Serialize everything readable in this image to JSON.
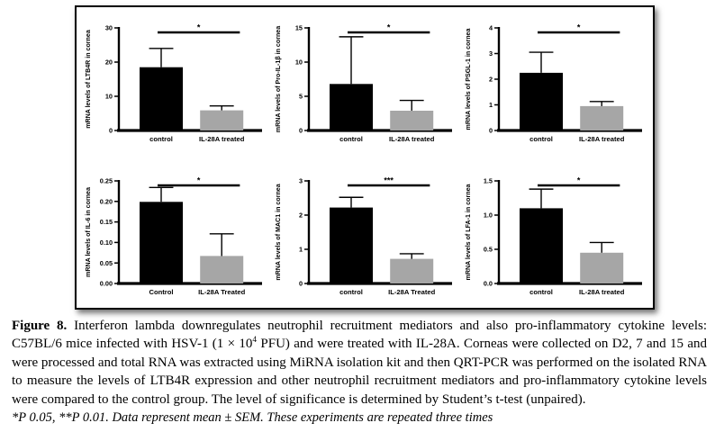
{
  "figure": {
    "caption": {
      "label": "Figure 8.",
      "text_before_sup": " Interferon lambda downregulates neutrophil recruitment mediators and also pro-inflammatory cytokine levels: C57BL/6 mice infected with HSV-1 (1 × 10",
      "superscript": "4",
      "text_after_sup": " PFU) and were treated with IL-28A. Corneas were collected on D2, 7 and 15 and were processed and total RNA was extracted using MiRNA isolation kit and then QRT-PCR was performed on the isolated RNA to measure the levels of LTB4R expression and other neutrophil recruitment mediators and pro-inflammatory cytokine levels were compared to the control group. The level of significance is determined by Student’s t-test (unpaired)."
    },
    "footnote": "*P 0.05, **P 0.01. Data represent mean ± SEM. These experiments are repeated three times"
  },
  "chart_data": [
    {
      "type": "bar",
      "id": "ltb4r",
      "ylabel": "mRNA levels of LTB4R in cornea",
      "categories": [
        "control",
        "IL-28A treated"
      ],
      "values": [
        18.5,
        5.9
      ],
      "errors": [
        5.5,
        1.3
      ],
      "ylim": [
        0,
        30
      ],
      "ytick_values": [
        0,
        10,
        20,
        30
      ],
      "yticks": [
        "0",
        "10",
        "20",
        "30"
      ],
      "significance": "*",
      "bar_colors": [
        "#000000",
        "#a6a6a6"
      ],
      "grid": false,
      "legend": "none"
    },
    {
      "type": "bar",
      "id": "pro-il-1b",
      "ylabel": "mRNA levels of Pro-IL-1β in cornea",
      "categories": [
        "control",
        "IL-28A treated"
      ],
      "values": [
        6.8,
        2.9
      ],
      "errors": [
        6.9,
        1.5
      ],
      "ylim": [
        0,
        15
      ],
      "ytick_values": [
        0,
        5,
        10,
        15
      ],
      "yticks": [
        "0",
        "5",
        "10",
        "15"
      ],
      "significance": "*",
      "bar_colors": [
        "#000000",
        "#a6a6a6"
      ],
      "grid": false,
      "legend": "none"
    },
    {
      "type": "bar",
      "id": "psgl-1",
      "ylabel": "mRNA levels of PSGL-1 in cornea",
      "categories": [
        "control",
        "IL-28A treated"
      ],
      "values": [
        2.25,
        0.95
      ],
      "errors": [
        0.8,
        0.18
      ],
      "ylim": [
        0,
        4
      ],
      "ytick_values": [
        0,
        1,
        2,
        3,
        4
      ],
      "yticks": [
        "0",
        "1",
        "2",
        "3",
        "4"
      ],
      "significance": "*",
      "bar_colors": [
        "#000000",
        "#a6a6a6"
      ],
      "grid": false,
      "legend": "none"
    },
    {
      "type": "bar",
      "id": "il-6",
      "ylabel": "mRNA levels of IL-6 in cornea",
      "categories": [
        "Control",
        "IL-28A Treated"
      ],
      "values": [
        0.199,
        0.067
      ],
      "errors": [
        0.035,
        0.054
      ],
      "ylim": [
        0,
        0.25
      ],
      "ytick_values": [
        0,
        0.05,
        0.1,
        0.15,
        0.2,
        0.25
      ],
      "yticks": [
        "0.00",
        "0.05",
        "0.10",
        "0.15",
        "0.20",
        "0.25"
      ],
      "significance": "*",
      "bar_colors": [
        "#000000",
        "#a6a6a6"
      ],
      "grid": false,
      "legend": "none"
    },
    {
      "type": "bar",
      "id": "mac1",
      "ylabel": "mRNA levels of MAC1 in cornea",
      "categories": [
        "control",
        "IL-28A Treated"
      ],
      "values": [
        2.22,
        0.72
      ],
      "errors": [
        0.3,
        0.15
      ],
      "ylim": [
        0,
        3
      ],
      "ytick_values": [
        0,
        1,
        2,
        3
      ],
      "yticks": [
        "0",
        "1",
        "2",
        "3"
      ],
      "significance": "***",
      "bar_colors": [
        "#000000",
        "#a6a6a6"
      ],
      "grid": false,
      "legend": "none"
    },
    {
      "type": "bar",
      "id": "lfa-1",
      "ylabel": "mRNA levels of LFA-1 in cornea",
      "categories": [
        "control",
        "IL-28A treated"
      ],
      "values": [
        1.1,
        0.45
      ],
      "errors": [
        0.28,
        0.15
      ],
      "ylim": [
        0,
        1.5
      ],
      "ytick_values": [
        0,
        0.5,
        1.0,
        1.5
      ],
      "yticks": [
        "0.0",
        "0.5",
        "1.0",
        "1.5"
      ],
      "significance": "*",
      "bar_colors": [
        "#000000",
        "#a6a6a6"
      ],
      "grid": false,
      "legend": "none"
    }
  ]
}
